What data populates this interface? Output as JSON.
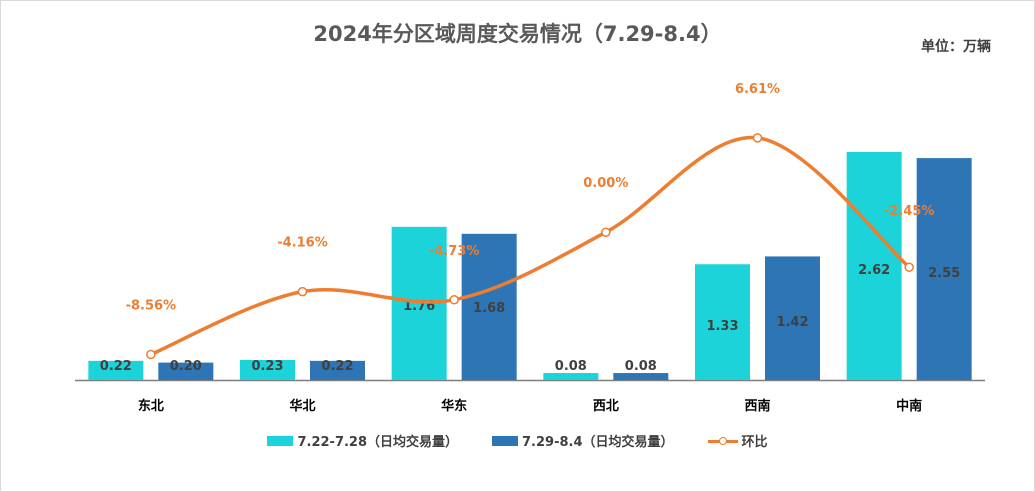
{
  "title": "2024年分区域周度交易情况（7.29-8.4）",
  "unit": "单位：万辆",
  "colors": {
    "series1": "#1bd3d9",
    "series2": "#2e75b6",
    "line": "#ed7d31"
  },
  "chart_data": {
    "type": "bar",
    "categories": [
      "东北",
      "华北",
      "华东",
      "西北",
      "西南",
      "中南"
    ],
    "series": [
      {
        "name": "7.22-7.28（日均交易量）",
        "values": [
          0.22,
          0.23,
          1.76,
          0.08,
          1.33,
          2.62
        ]
      },
      {
        "name": "7.29-8.4（日均交易量）",
        "values": [
          0.2,
          0.22,
          1.68,
          0.08,
          1.42,
          2.55
        ]
      }
    ],
    "line_series": {
      "name": "环比",
      "values": [
        -8.56,
        -4.16,
        -4.73,
        0.0,
        6.61,
        -2.45
      ],
      "labels": [
        "-8.56%",
        "-4.16%",
        "-4.73%",
        "0.00%",
        "6.61%",
        "-2.45%"
      ]
    },
    "bar_labels": [
      [
        "0.22",
        "0.23",
        "1.76",
        "0.08",
        "1.33",
        "2.62"
      ],
      [
        "0.20",
        "0.22",
        "1.68",
        "0.08",
        "1.42",
        "2.55"
      ]
    ],
    "ylim": [
      0,
      2.9
    ],
    "line_ylim": [
      -10,
      8
    ],
    "legend_position": "bottom",
    "grid": false
  }
}
